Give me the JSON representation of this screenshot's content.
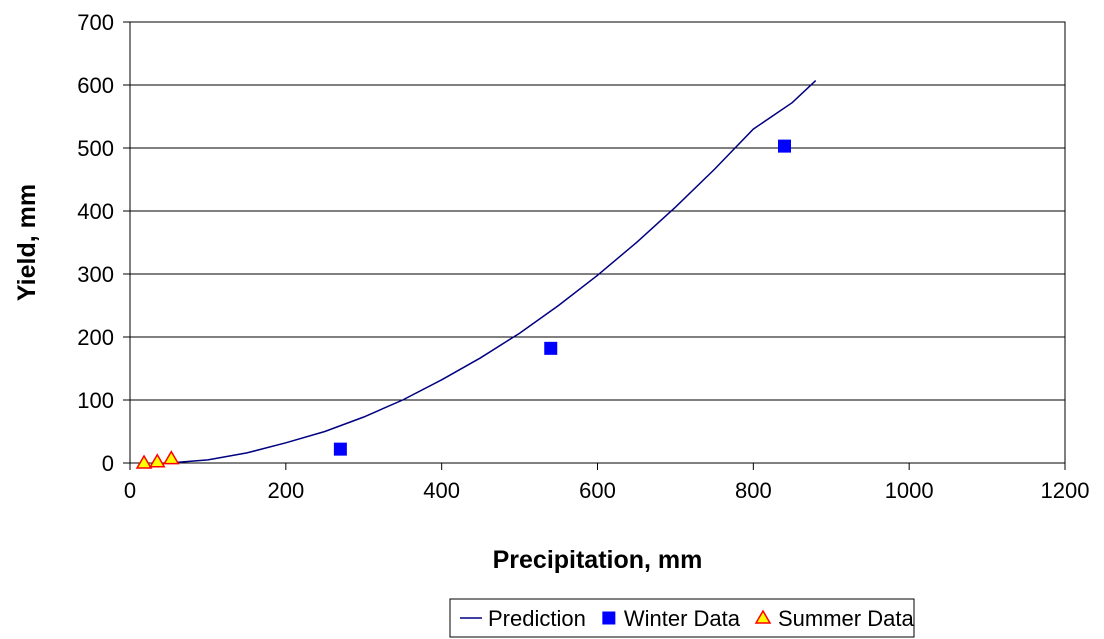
{
  "chart_data": {
    "type": "scatter",
    "title": "",
    "xlabel": "Precipitation, mm",
    "ylabel": "Yield, mm",
    "xlim": [
      0,
      1200
    ],
    "ylim": [
      0,
      700
    ],
    "x_ticks": [
      0,
      200,
      400,
      600,
      800,
      1000,
      1200
    ],
    "y_ticks": [
      0,
      100,
      200,
      300,
      400,
      500,
      600,
      700
    ],
    "grid": {
      "horizontal": true,
      "vertical": false
    },
    "legend_position": "bottom",
    "series": [
      {
        "name": "Prediction",
        "kind": "line",
        "color": "#000080",
        "x": [
          50,
          100,
          150,
          200,
          250,
          300,
          350,
          400,
          450,
          500,
          550,
          600,
          650,
          700,
          750,
          800,
          850,
          880
        ],
        "y": [
          0,
          5,
          16,
          32,
          50,
          73,
          100,
          132,
          167,
          206,
          250,
          298,
          350,
          406,
          466,
          530,
          572,
          607
        ]
      },
      {
        "name": "Winter Data",
        "kind": "points",
        "marker": "square",
        "color": "#0000ff",
        "x": [
          270,
          540,
          840
        ],
        "y": [
          22,
          182,
          503
        ]
      },
      {
        "name": "Summer Data",
        "kind": "points",
        "marker": "triangle",
        "color": "#ffff00",
        "stroke": "#ff0000",
        "x": [
          18,
          35,
          53
        ],
        "y": [
          0,
          2,
          7
        ]
      }
    ]
  }
}
